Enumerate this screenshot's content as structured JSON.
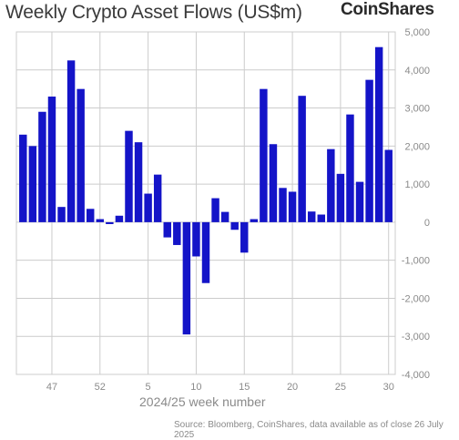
{
  "header": {
    "title": "Weekly Crypto Asset Flows (US$m)",
    "brand": "CoinShares"
  },
  "footer": {
    "source": "Source: Bloomberg, CoinShares, data available as of close 26 July 2025"
  },
  "colors": {
    "bar": "#1414c8",
    "grid": "#cccccc",
    "text": "#8a8a8a"
  },
  "chart_data": {
    "type": "bar",
    "title": "Weekly Crypto Asset Flows (US$m)",
    "xlabel": "2024/25 week number",
    "ylabel": "",
    "ylim": [
      -4000,
      5000
    ],
    "grid": true,
    "y_ticks": [
      "5,000",
      "4,000",
      "3,000",
      "2,000",
      "1,000",
      "0",
      "-1,000",
      "-2,000",
      "-3,000",
      "-4,000"
    ],
    "y_tick_values": [
      5000,
      4000,
      3000,
      2000,
      1000,
      0,
      -1000,
      -2000,
      -3000,
      -4000
    ],
    "x_ticks": [
      {
        "label": "47",
        "category": 47
      },
      {
        "label": "52",
        "category": 52
      },
      {
        "label": "5",
        "category": 5
      },
      {
        "label": "10",
        "category": 10
      },
      {
        "label": "15",
        "category": 15
      },
      {
        "label": "20",
        "category": 20
      },
      {
        "label": "25",
        "category": 25
      },
      {
        "label": "30",
        "category": 30
      }
    ],
    "categories": [
      44,
      45,
      46,
      47,
      48,
      49,
      50,
      51,
      52,
      1,
      2,
      3,
      4,
      5,
      6,
      7,
      8,
      9,
      10,
      11,
      12,
      13,
      14,
      15,
      16,
      17,
      18,
      19,
      20,
      21,
      22,
      23,
      24,
      25,
      26,
      27,
      28,
      29,
      30
    ],
    "values": [
      2300,
      2000,
      2900,
      3300,
      400,
      4250,
      3500,
      350,
      80,
      -50,
      170,
      2400,
      2100,
      750,
      1250,
      -400,
      -600,
      -2950,
      -900,
      -1600,
      630,
      270,
      -200,
      -800,
      80,
      3500,
      2050,
      900,
      800,
      3320,
      280,
      200,
      1920,
      1270,
      2830,
      1060,
      3740,
      4600,
      1900
    ]
  }
}
